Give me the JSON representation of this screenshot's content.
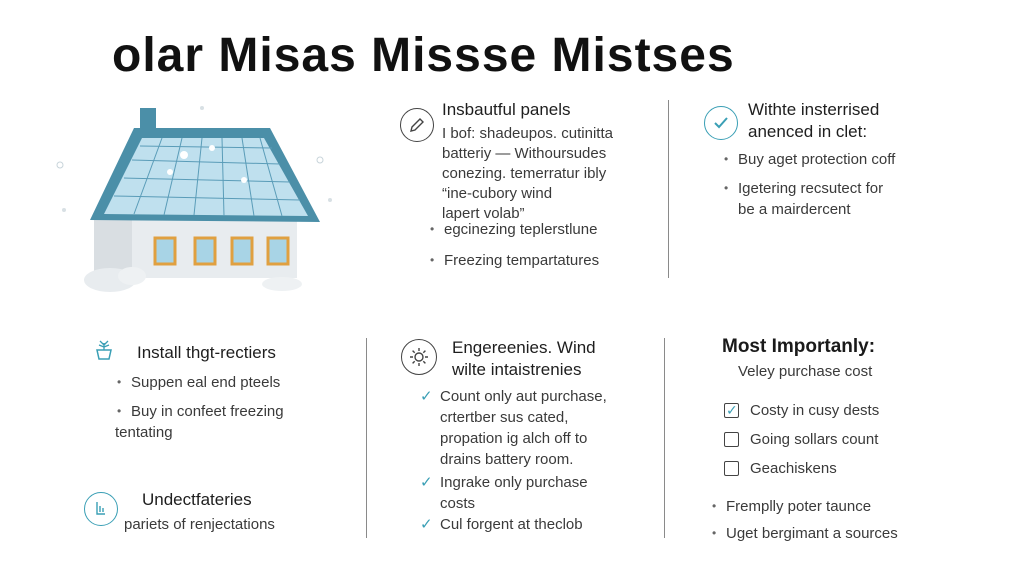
{
  "title": "olar Misas Missse Mistses",
  "panel_a": {
    "heading": "Insbautful panels",
    "lines": [
      "I bof: shadeupos. cutinitta",
      "batteriy — Withoursudes",
      "conezing. temerratur ibly",
      "“ine-cubory wind",
      "lapert volab”"
    ],
    "bullets": [
      "egcinezing teplerstlune",
      "Freezing tempartatures"
    ]
  },
  "panel_b": {
    "heading_line1": "Withte  insterrised",
    "heading_line2": "anenced in clet:",
    "bullets": [
      "Buy aget protection coff",
      "Igetering recsutect for"
    ],
    "continuation": "be a mairdercent"
  },
  "panel_c": {
    "heading": "Install thgt-rectiers",
    "bullets": [
      "Suppen eal end pteels",
      "Buy in confeet freezing"
    ],
    "continuation": "tentating"
  },
  "panel_d": {
    "heading": "Undectfateries",
    "subtext": "pariets of renjectations"
  },
  "panel_e": {
    "heading_line1": "Engereenies. Wind",
    "heading_line2": "wilte intaistrenies",
    "checks": [
      {
        "lines": [
          "Count only aut purchase,",
          "crtertber sus cated,",
          "propation ig alch off to",
          "drains battery room."
        ]
      },
      {
        "lines": [
          "Ingrake only purchase",
          "costs"
        ]
      },
      {
        "lines": [
          "Cul forgent at theclob"
        ]
      }
    ]
  },
  "panel_f": {
    "heading": "Most Importanly:",
    "subtext": "Veley purchase cost",
    "checkboxes": [
      {
        "label": "Costy in cusy dests",
        "checked": true
      },
      {
        "label": "Going sollars count",
        "checked": false
      },
      {
        "label": "Geachiskens",
        "checked": false
      }
    ],
    "bullets": [
      "Fremplly poter taunce",
      "Uget bergimant a sources"
    ]
  },
  "colors": {
    "accent": "#3a9fb5",
    "roof": "#4b8fa8",
    "panel": "#a8d4e6",
    "window_frame": "#e0a040"
  },
  "icons": [
    "pen-icon",
    "check-circle-icon",
    "plant-icon",
    "hand-icon",
    "gear-icon",
    "house-illustration"
  ]
}
